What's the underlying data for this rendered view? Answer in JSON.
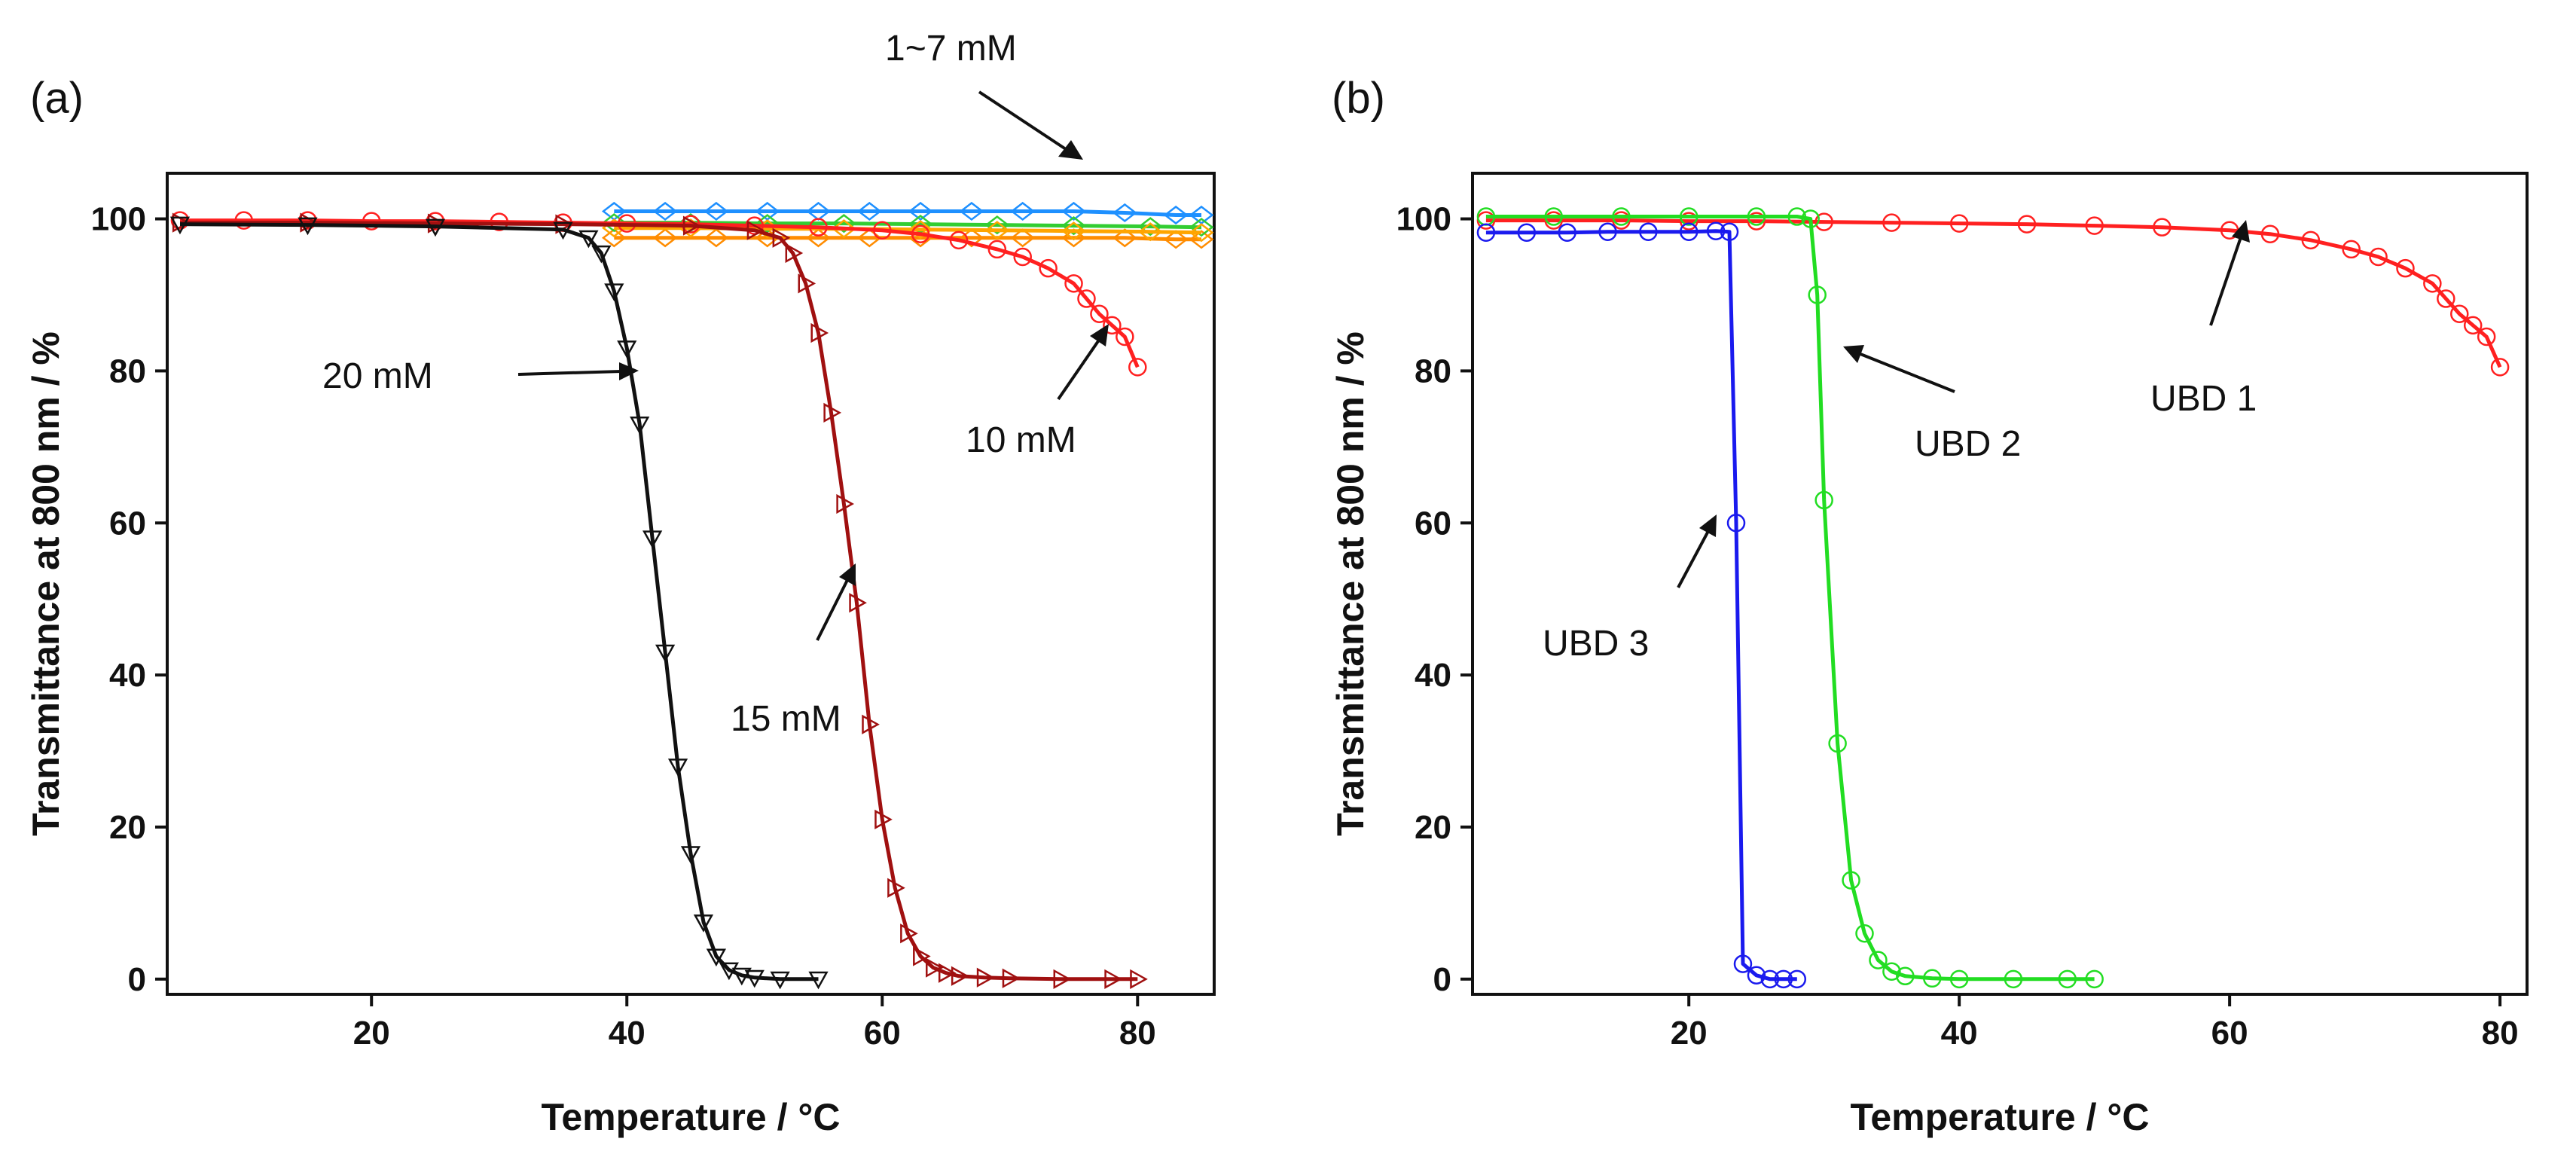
{
  "chart_data": [
    {
      "type": "line",
      "panel_label": "(a)",
      "title": "",
      "xlabel": "Temperature / °C",
      "ylabel": "Transmittance at 800 nm / %",
      "xlim": [
        4,
        86
      ],
      "ylim": [
        -2,
        106
      ],
      "xticks": [
        20,
        40,
        60,
        80
      ],
      "yticks": [
        0,
        20,
        40,
        60,
        80,
        100
      ],
      "grid": false,
      "series": [
        {
          "name": "1~7 mM",
          "color": "#1e90ff",
          "marker": "diamond",
          "values_description": "",
          "x": [
            39,
            43,
            47,
            51,
            55,
            59,
            63,
            67,
            71,
            75,
            79,
            83,
            85
          ],
          "y": [
            101,
            101,
            101,
            101,
            101,
            101,
            101,
            101,
            101,
            101,
            100.8,
            100.5,
            100.5
          ]
        },
        {
          "name": "1~7 mM",
          "color": "#ff8c00",
          "marker": "diamond",
          "x": [
            39,
            43,
            47,
            51,
            55,
            59,
            63,
            67,
            71,
            75,
            79,
            83,
            85
          ],
          "y": [
            97.5,
            97.5,
            97.5,
            97.5,
            97.5,
            97.5,
            97.5,
            97.5,
            97.5,
            97.5,
            97.5,
            97.3,
            97.3
          ]
        },
        {
          "name": "1~7 mM",
          "color": "#32cd32",
          "marker": "diamond",
          "x": [
            39,
            45,
            51,
            57,
            63,
            69,
            75,
            81,
            85
          ],
          "y": [
            99.5,
            99.5,
            99.4,
            99.4,
            99.3,
            99.2,
            99.1,
            99.0,
            98.9
          ]
        },
        {
          "name": "1~7 mM",
          "color": "#ffa500",
          "marker": "diamond",
          "x": [
            39,
            45,
            51,
            57,
            63,
            69,
            75,
            81,
            85
          ],
          "y": [
            98.8,
            98.8,
            98.7,
            98.7,
            98.6,
            98.5,
            98.4,
            98.3,
            98.2
          ]
        },
        {
          "name": "10 mM",
          "color": "#ff2020",
          "marker": "circle",
          "x": [
            5,
            10,
            15,
            20,
            25,
            30,
            35,
            40,
            45,
            50,
            55,
            60,
            63,
            66,
            69,
            71,
            73,
            75,
            76,
            77,
            78,
            79,
            80
          ],
          "y": [
            99.8,
            99.8,
            99.8,
            99.7,
            99.7,
            99.6,
            99.5,
            99.4,
            99.3,
            99.1,
            98.9,
            98.5,
            98,
            97.2,
            96,
            95,
            93.5,
            91.5,
            89.5,
            87.5,
            86,
            84.5,
            80.5
          ]
        },
        {
          "name": "15 mM",
          "color": "#a01010",
          "marker": "triangle-right",
          "x": [
            5,
            15,
            25,
            35,
            45,
            50,
            52,
            53,
            54,
            55,
            56,
            57,
            58,
            59,
            60,
            61,
            62,
            63,
            64,
            65,
            66,
            68,
            70,
            74,
            78,
            80
          ],
          "y": [
            99.5,
            99.5,
            99.4,
            99.3,
            99.1,
            98.5,
            97.5,
            95.5,
            91.5,
            85,
            74.5,
            62.5,
            49.5,
            33.5,
            21,
            12,
            6,
            3,
            1.5,
            0.8,
            0.4,
            0.2,
            0.1,
            0,
            0,
            0
          ]
        },
        {
          "name": "20 mM",
          "color": "#111111",
          "marker": "triangle-down",
          "x": [
            5,
            15,
            25,
            35,
            37,
            38,
            39,
            40,
            41,
            42,
            43,
            44,
            45,
            46,
            47,
            48,
            49,
            50,
            52,
            55
          ],
          "y": [
            99.3,
            99.2,
            99.0,
            98.6,
            97.5,
            95.5,
            90.5,
            83,
            73,
            58,
            43,
            28,
            16.5,
            7.5,
            3,
            1.2,
            0.5,
            0.2,
            0,
            0
          ]
        }
      ],
      "annotations": [
        {
          "text": "1~7 mM",
          "x": 65,
          "y": 110
        },
        {
          "text": "20 mM",
          "x": 20,
          "y": 77
        },
        {
          "text": "15 mM",
          "x": 58,
          "y": 32
        },
        {
          "text": "10 mM",
          "x": 80,
          "y": 68
        }
      ]
    },
    {
      "type": "line",
      "panel_label": "(b)",
      "title": "",
      "xlabel": "Temperature / °C",
      "ylabel": "Transmittance at 800 nm / %",
      "xlim": [
        4,
        82
      ],
      "ylim": [
        -2,
        106
      ],
      "xticks": [
        20,
        40,
        60,
        80
      ],
      "yticks": [
        0,
        20,
        40,
        60,
        80,
        100
      ],
      "grid": false,
      "series": [
        {
          "name": "UBD 1",
          "color": "#ff2020",
          "marker": "circle",
          "x": [
            5,
            10,
            15,
            20,
            25,
            30,
            35,
            40,
            45,
            50,
            55,
            60,
            63,
            66,
            69,
            71,
            73,
            75,
            76,
            77,
            78,
            79,
            80
          ],
          "y": [
            99.8,
            99.8,
            99.8,
            99.7,
            99.7,
            99.6,
            99.5,
            99.4,
            99.3,
            99.1,
            98.9,
            98.5,
            98,
            97.2,
            96,
            95,
            93.5,
            91.5,
            89.5,
            87.5,
            86,
            84.5,
            80.5
          ]
        },
        {
          "name": "UBD 2",
          "color": "#22dd22",
          "marker": "circle",
          "x": [
            5,
            10,
            15,
            20,
            25,
            28,
            29,
            29.5,
            30,
            31,
            32,
            33,
            34,
            35,
            36,
            38,
            40,
            44,
            48,
            50
          ],
          "y": [
            100.3,
            100.3,
            100.3,
            100.3,
            100.3,
            100.3,
            100,
            90,
            63,
            31,
            13,
            6,
            2.5,
            1,
            0.4,
            0.1,
            0,
            0,
            0,
            0
          ]
        },
        {
          "name": "UBD 3",
          "color": "#1a1aee",
          "marker": "circle",
          "x": [
            5,
            8,
            11,
            14,
            17,
            20,
            22,
            23,
            23.5,
            24,
            25,
            26,
            27,
            28
          ],
          "y": [
            98.2,
            98.2,
            98.2,
            98.3,
            98.3,
            98.3,
            98.4,
            98.3,
            60,
            2,
            0.5,
            0,
            0,
            0
          ]
        }
      ],
      "annotations": [
        {
          "text": "UBD 1",
          "x": 65,
          "y": 74
        },
        {
          "text": "UBD 2",
          "x": 37,
          "y": 68
        },
        {
          "text": "UBD 3",
          "x": 14,
          "y": 42
        }
      ]
    }
  ]
}
